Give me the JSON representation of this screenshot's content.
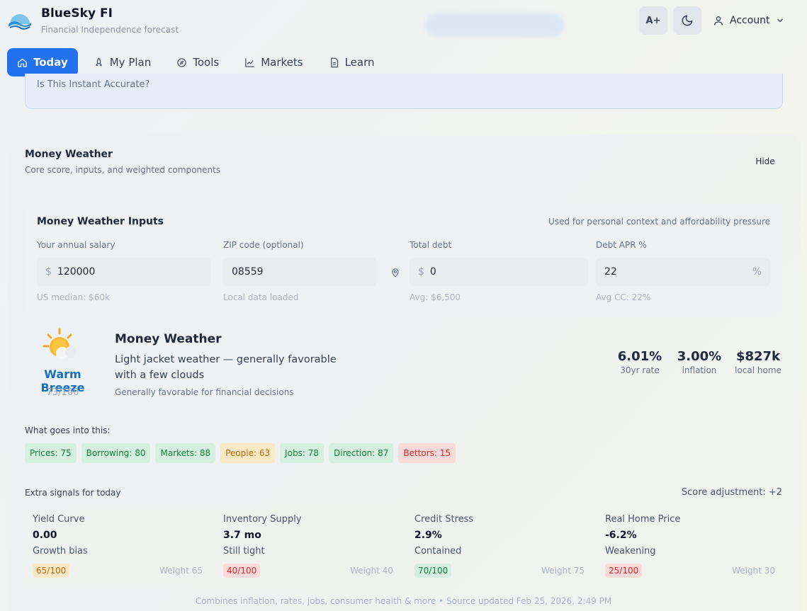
{
  "app": {
    "name": "BlueSky FI",
    "tagline": "Financial Independence forecast",
    "font_button": "A+",
    "account_label": "Account"
  },
  "nav": {
    "tabs": [
      {
        "label": "Today",
        "icon": "home-icon",
        "active": true
      },
      {
        "label": "My Plan",
        "icon": "rocket-icon"
      },
      {
        "label": "Tools",
        "icon": "compass-icon"
      },
      {
        "label": "Markets",
        "icon": "chart-line-icon"
      },
      {
        "label": "Learn",
        "icon": "document-icon"
      }
    ]
  },
  "prev_card": {
    "partial_text": "Is This Instant Accurate?"
  },
  "section": {
    "title": "Money Weather",
    "subtitle": "Core score, inputs, and weighted components",
    "hide_label": "Hide"
  },
  "inputs": {
    "title": "Money Weather Inputs",
    "note": "Used for personal context and affordability pressure",
    "fields": [
      {
        "label": "Your annual salary",
        "prefix": "$",
        "value": "120000",
        "help": "US median: $60k"
      },
      {
        "label": "ZIP code (optional)",
        "value": "08559",
        "help": "Local data loaded",
        "icon": "location-pin-icon"
      },
      {
        "label": "Total debt",
        "prefix": "$",
        "value": "0",
        "help": "Avg: $6,500"
      },
      {
        "label": "Debt APR %",
        "value": "22",
        "suffix": "%",
        "help": "Avg CC: 22%"
      }
    ]
  },
  "weather": {
    "icon": "sun-behind-cloud-icon",
    "label": "Warm Breeze",
    "score": "73/100",
    "title": "Money Weather",
    "description": "Light jacket weather — generally favorable with a few clouds",
    "subtext": "Generally favorable for financial decisions",
    "stats": [
      {
        "value": "6.01%",
        "label": "30yr rate"
      },
      {
        "value": "3.00%",
        "label": "inflation"
      },
      {
        "value": "$827k",
        "label": "local home"
      }
    ]
  },
  "components": {
    "label": "What goes into this:",
    "chips": [
      {
        "text": "Prices: 75",
        "tone": "good"
      },
      {
        "text": "Borrowing: 80",
        "tone": "good"
      },
      {
        "text": "Markets: 88",
        "tone": "good"
      },
      {
        "text": "People: 63",
        "tone": "mid"
      },
      {
        "text": "Jobs: 78",
        "tone": "good"
      },
      {
        "text": "Direction: 87",
        "tone": "good"
      },
      {
        "text": "Bettors: 15",
        "tone": "bad"
      }
    ]
  },
  "extra_signals": {
    "label": "Extra signals for today",
    "score_adjustment": "Score adjustment: +2",
    "items": [
      {
        "name": "Yield Curve",
        "value": "0.00",
        "desc": "Growth bias",
        "score": "65/100",
        "tone": "mid",
        "weight": "Weight 65"
      },
      {
        "name": "Inventory Supply",
        "value": "3.7 mo",
        "desc": "Still tight",
        "score": "40/100",
        "tone": "bad",
        "weight": "Weight 40"
      },
      {
        "name": "Credit Stress",
        "value": "2.9%",
        "desc": "Contained",
        "score": "70/100",
        "tone": "good",
        "weight": "Weight 75"
      },
      {
        "name": "Real Home Price",
        "value": "-6.2%",
        "desc": "Weakening",
        "score": "25/100",
        "tone": "bad",
        "weight": "Weight 30"
      }
    ]
  },
  "footer": {
    "note": "Combines inflation, rates, jobs, consumer health & more • Source updated Feb 25, 2026, 2:49 PM"
  },
  "colors": {
    "accent": "#2272ef",
    "warm_breeze": "#1570c0",
    "good": "#15803d",
    "mid": "#c2670a",
    "bad": "#dc2626"
  }
}
